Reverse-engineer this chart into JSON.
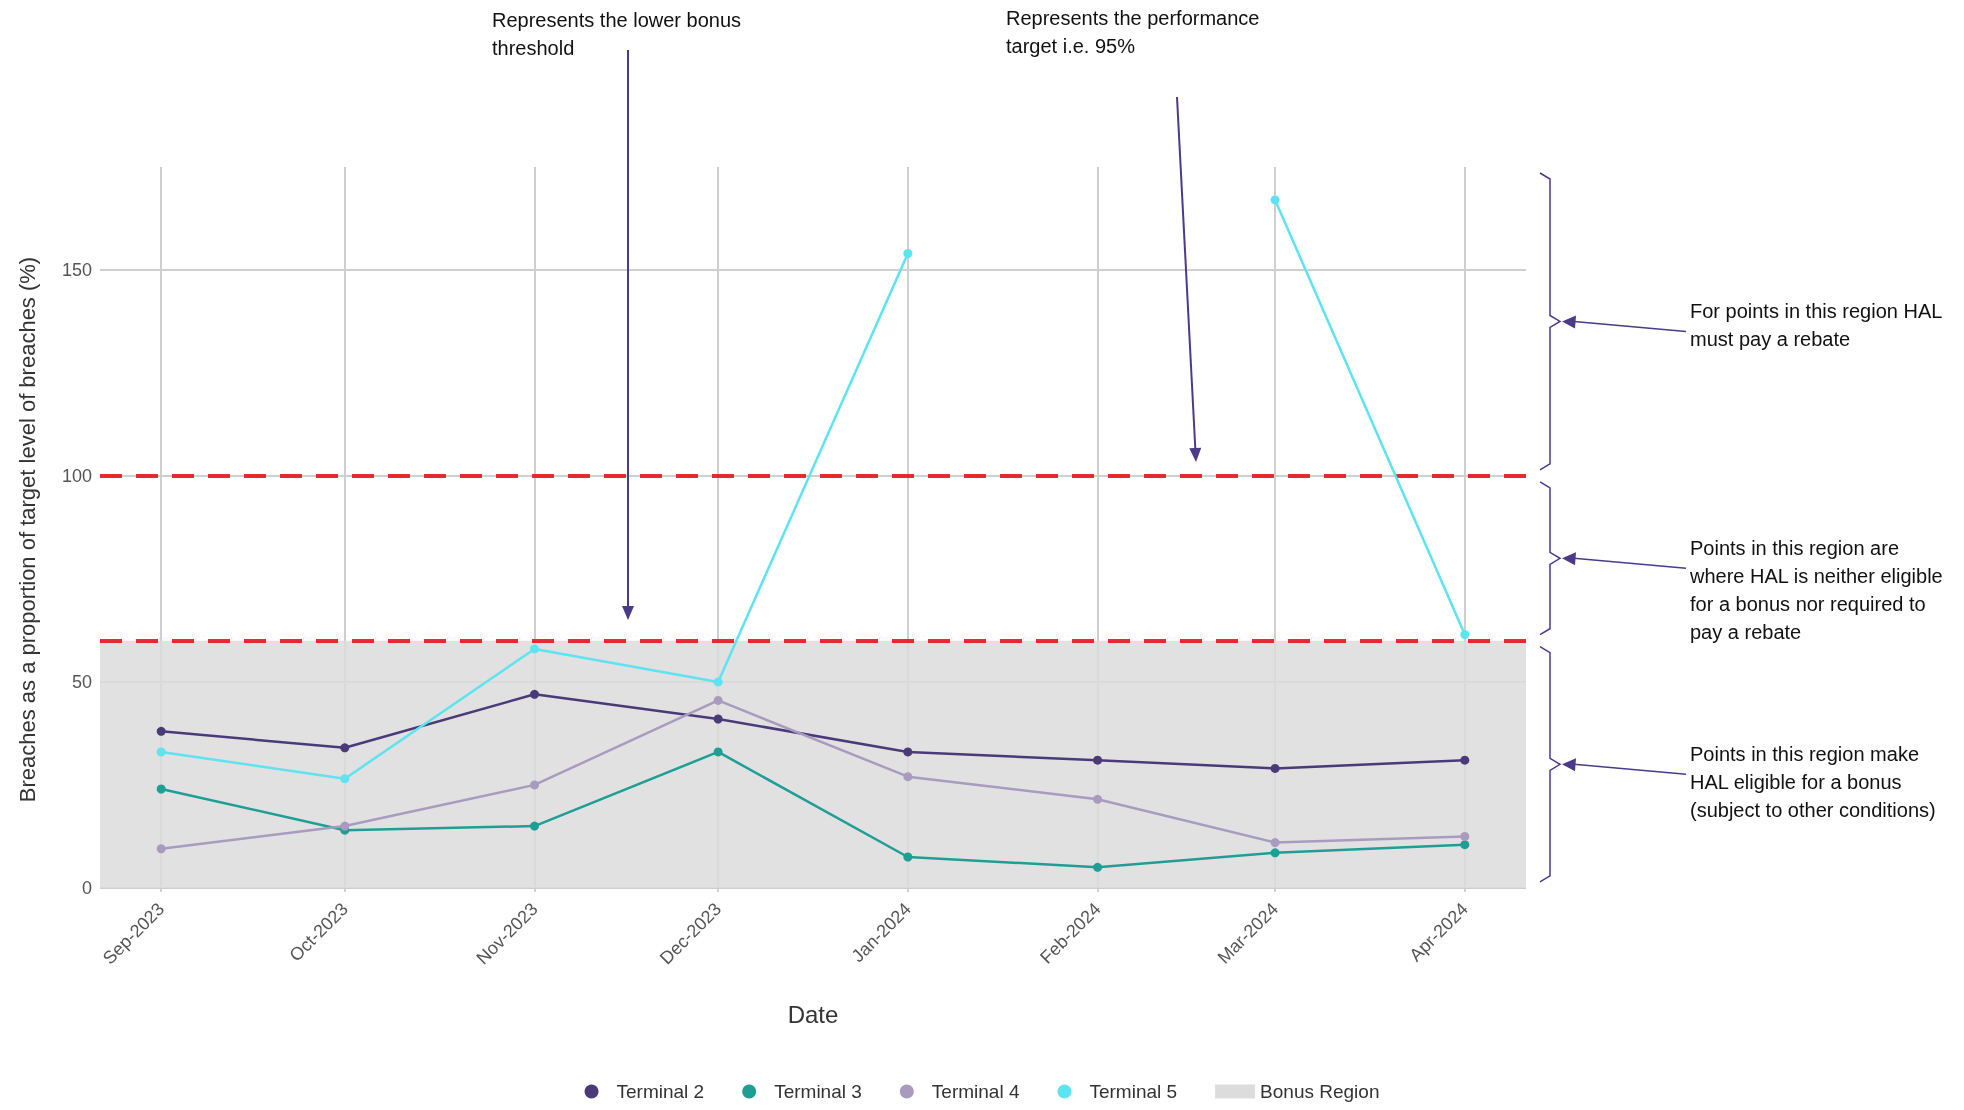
{
  "chart_data": {
    "type": "line",
    "ylabel": "Breaches as a proportion of target level of breaches (%)",
    "xlabel": "Date",
    "x": [
      "2023-09",
      "2023-10",
      "2023-11",
      "2023-12",
      "2024-01",
      "2024-02",
      "2024-03",
      "2024-04"
    ],
    "xlim": [
      "2023-08-22",
      "2024-04-11"
    ],
    "xticks": [
      {
        "value": "2023-09",
        "label": "Sep-2023"
      },
      {
        "value": "2023-10",
        "label": "Oct-2023"
      },
      {
        "value": "2023-11",
        "label": "Nov-2023"
      },
      {
        "value": "2023-12",
        "label": "Dec-2023"
      },
      {
        "value": "2024-01",
        "label": "Jan-2024"
      },
      {
        "value": "2024-02",
        "label": "Feb-2024"
      },
      {
        "value": "2024-03",
        "label": "Mar-2024"
      },
      {
        "value": "2024-04",
        "label": "Apr-2024"
      }
    ],
    "ylim": [
      -1,
      175
    ],
    "yticks": [
      0,
      50,
      100,
      150
    ],
    "series": [
      {
        "name": "Terminal 2",
        "color": "#4b3a78",
        "values": [
          38,
          34,
          47,
          41,
          33,
          31,
          29,
          31
        ]
      },
      {
        "name": "Terminal 3",
        "color": "#1f9e96",
        "values": [
          24,
          14,
          15,
          33,
          7.5,
          5,
          8.5,
          10.5
        ]
      },
      {
        "name": "Terminal 4",
        "color": "#a99bbf",
        "values": [
          9.5,
          15,
          25,
          45.5,
          27,
          21.5,
          11,
          12.5
        ]
      },
      {
        "name": "Terminal 5",
        "color": "#5ee3f0",
        "values": [
          33,
          26.5,
          58,
          50,
          154,
          null,
          167,
          61.5
        ]
      }
    ],
    "marker": "circle",
    "line_style": "solid",
    "grid": true,
    "legend": "bottom",
    "ref_lines": [
      {
        "axis": "y",
        "value": 100,
        "color": "#e8141c",
        "line_style": "dashed"
      },
      {
        "axis": "y",
        "value": 60,
        "color": "#e8141c",
        "line_style": "dashed"
      }
    ],
    "bands": [
      {
        "axis": "y",
        "from": 0,
        "to": 60,
        "label": "Bonus Region",
        "color": "#dcdcdc"
      }
    ],
    "annotations": [
      "Represents the lower bonus threshold",
      "Represents the performance target i.e. 95%",
      "For points in this region HAL must pay a rebate",
      "Points in this region are where HAL is neither eligible for a bonus nor required to pay a rebate",
      "Points in this region make HAL eligible for a bonus (subject to other conditions)"
    ]
  }
}
